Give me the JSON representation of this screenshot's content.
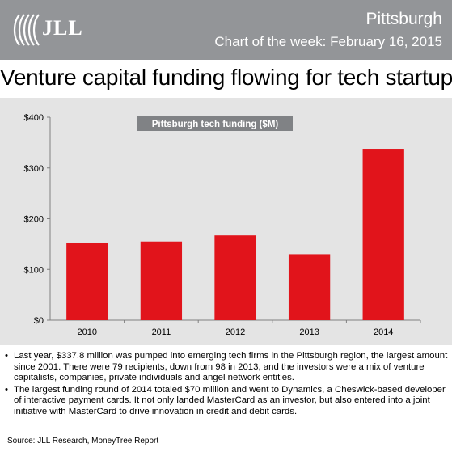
{
  "header": {
    "logo_text": "JLL",
    "city": "Pittsburgh",
    "subtitle": "Chart of the week: February 16, 2015",
    "background": "#939598"
  },
  "title": "Venture capital funding flowing for tech startups",
  "chart_data": {
    "type": "bar",
    "legend_label": "Pittsburgh tech funding ($M)",
    "categories": [
      "2010",
      "2011",
      "2012",
      "2013",
      "2014"
    ],
    "values": [
      153,
      155,
      167,
      130,
      337.8
    ],
    "ylim": [
      0,
      400
    ],
    "yticks": [
      0,
      100,
      200,
      300,
      400
    ],
    "ytick_labels": [
      "$0",
      "$100",
      "$200",
      "$300",
      "$400"
    ],
    "grid": false,
    "bar_color": "#e1141b",
    "panel_color": "#e4e4e4",
    "legend_color": "#808285"
  },
  "notes": [
    "Last year, $337.8 million was pumped into emerging tech firms in the Pittsburgh region, the largest amount since 2001. There were 79 recipients, down from 98 in 2013, and the investors were a mix of venture capitalists, companies, private individuals and angel network entities.",
    "The largest funding round of 2014 totaled $70 million and went to Dynamics, a Cheswick-based developer of interactive payment cards. It not only landed MasterCard as an investor, but also entered into a joint initiative with MasterCard to drive innovation in credit and debit cards."
  ],
  "bullet": "•",
  "source": "Source: JLL Research, MoneyTree Report"
}
